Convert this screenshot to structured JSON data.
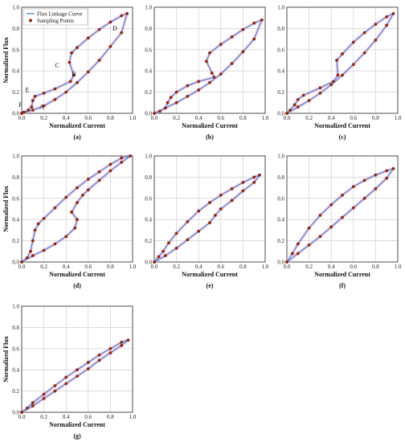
{
  "legend": {
    "curve_label": "Flux Linkage Curve",
    "points_label": "Sampling Points"
  },
  "colors": {
    "curve": "#2e7fd0",
    "points": "#8b2a18",
    "grid": "#c8c8c8",
    "halo": "#ff9ec4"
  },
  "chart_data": [
    {
      "panel": "(a)",
      "type": "line",
      "xlabel": "Normalized Current",
      "ylabel": "Normalized Flux",
      "xlim": [
        0,
        1
      ],
      "ylim": [
        0,
        1
      ],
      "xticks": [
        "0.0",
        "0.2",
        "0.4",
        "0.6",
        "0.8",
        "1.0"
      ],
      "yticks": [
        "0.0",
        "0.2",
        "0.4",
        "0.6",
        "0.8",
        "1.0"
      ],
      "grid": true,
      "legend": "top-left",
      "annotations": [
        {
          "text": "A",
          "x": 0.18,
          "y": 0.04
        },
        {
          "text": "B",
          "x": 0.47,
          "y": 0.35
        },
        {
          "text": "C",
          "x": 0.32,
          "y": 0.43
        },
        {
          "text": "D",
          "x": 0.84,
          "y": 0.78
        },
        {
          "text": "E",
          "x": 0.05,
          "y": 0.2
        },
        {
          "text": "F",
          "x": -0.01,
          "y": 0.06
        }
      ],
      "series": [
        {
          "points": [
            [
              0,
              0
            ],
            [
              0.1,
              0.03
            ],
            [
              0.2,
              0.07
            ],
            [
              0.3,
              0.13
            ],
            [
              0.4,
              0.2
            ],
            [
              0.5,
              0.29
            ],
            [
              0.6,
              0.39
            ],
            [
              0.7,
              0.5
            ],
            [
              0.8,
              0.63
            ],
            [
              0.9,
              0.76
            ],
            [
              0.95,
              0.94
            ],
            [
              0.9,
              0.92
            ],
            [
              0.8,
              0.86
            ],
            [
              0.7,
              0.79
            ],
            [
              0.6,
              0.71
            ],
            [
              0.5,
              0.62
            ],
            [
              0.45,
              0.57
            ],
            [
              0.43,
              0.48
            ],
            [
              0.47,
              0.36
            ],
            [
              0.44,
              0.3
            ],
            [
              0.3,
              0.23
            ],
            [
              0.2,
              0.19
            ],
            [
              0.12,
              0.16
            ],
            [
              0.1,
              0.12
            ],
            [
              0.09,
              0.06
            ],
            [
              0.06,
              0.03
            ],
            [
              0.02,
              0.01
            ],
            [
              0,
              0
            ]
          ]
        }
      ]
    },
    {
      "panel": "(b)",
      "type": "line",
      "xlabel": "Normalized Current",
      "ylabel": "",
      "xlim": [
        0,
        1
      ],
      "ylim": [
        0,
        1
      ],
      "xticks": [
        "0.0",
        "0.2",
        "0.4",
        "0.6",
        "0.8",
        "1.0"
      ],
      "yticks": [
        "0.0",
        "0.2",
        "0.4",
        "0.6",
        "0.8",
        "1.0"
      ],
      "grid": true,
      "series": [
        {
          "points": [
            [
              0,
              0
            ],
            [
              0.1,
              0.05
            ],
            [
              0.2,
              0.1
            ],
            [
              0.3,
              0.16
            ],
            [
              0.4,
              0.22
            ],
            [
              0.5,
              0.29
            ],
            [
              0.6,
              0.37
            ],
            [
              0.7,
              0.47
            ],
            [
              0.8,
              0.58
            ],
            [
              0.9,
              0.7
            ],
            [
              0.97,
              0.88
            ],
            [
              0.9,
              0.85
            ],
            [
              0.8,
              0.79
            ],
            [
              0.7,
              0.72
            ],
            [
              0.6,
              0.65
            ],
            [
              0.5,
              0.57
            ],
            [
              0.47,
              0.49
            ],
            [
              0.52,
              0.38
            ],
            [
              0.54,
              0.34
            ],
            [
              0.4,
              0.3
            ],
            [
              0.3,
              0.26
            ],
            [
              0.2,
              0.2
            ],
            [
              0.15,
              0.15
            ],
            [
              0.12,
              0.1
            ],
            [
              0.1,
              0.05
            ],
            [
              0.05,
              0.02
            ],
            [
              0,
              0
            ]
          ]
        }
      ]
    },
    {
      "panel": "(c)",
      "type": "line",
      "xlabel": "Normalized Current",
      "ylabel": "",
      "xlim": [
        0,
        1
      ],
      "ylim": [
        0,
        1
      ],
      "xticks": [
        "0.0",
        "0.2",
        "0.4",
        "0.6",
        "0.8",
        "1.0"
      ],
      "yticks": [
        "0.0",
        "0.2",
        "0.4",
        "0.6",
        "0.8",
        "1.0"
      ],
      "grid": true,
      "series": [
        {
          "points": [
            [
              0,
              0
            ],
            [
              0.1,
              0.06
            ],
            [
              0.2,
              0.12
            ],
            [
              0.3,
              0.19
            ],
            [
              0.4,
              0.27
            ],
            [
              0.5,
              0.36
            ],
            [
              0.6,
              0.46
            ],
            [
              0.7,
              0.57
            ],
            [
              0.8,
              0.69
            ],
            [
              0.9,
              0.83
            ],
            [
              0.96,
              0.94
            ],
            [
              0.9,
              0.91
            ],
            [
              0.8,
              0.84
            ],
            [
              0.7,
              0.76
            ],
            [
              0.6,
              0.67
            ],
            [
              0.5,
              0.56
            ],
            [
              0.45,
              0.5
            ],
            [
              0.46,
              0.36
            ],
            [
              0.42,
              0.3
            ],
            [
              0.3,
              0.24
            ],
            [
              0.15,
              0.17
            ],
            [
              0.1,
              0.13
            ],
            [
              0.07,
              0.08
            ],
            [
              0.03,
              0.03
            ],
            [
              0,
              0
            ]
          ]
        }
      ]
    },
    {
      "panel": "(d)",
      "type": "line",
      "xlabel": "Normalized Current",
      "ylabel": "Normalized Flux",
      "xlim": [
        0,
        1
      ],
      "ylim": [
        0,
        1
      ],
      "xticks": [
        "0.0",
        "0.2",
        "0.4",
        "0.6",
        "0.8",
        "1.0"
      ],
      "yticks": [
        "0.0",
        "0.2",
        "0.4",
        "0.6",
        "0.8",
        "1.0"
      ],
      "grid": true,
      "series": [
        {
          "points": [
            [
              0,
              0
            ],
            [
              0.1,
              0.06
            ],
            [
              0.2,
              0.11
            ],
            [
              0.3,
              0.17
            ],
            [
              0.4,
              0.24
            ],
            [
              0.48,
              0.32
            ],
            [
              0.5,
              0.4
            ],
            [
              0.45,
              0.47
            ],
            [
              0.5,
              0.56
            ],
            [
              0.55,
              0.63
            ],
            [
              0.6,
              0.68
            ],
            [
              0.7,
              0.77
            ],
            [
              0.8,
              0.86
            ],
            [
              0.9,
              0.94
            ],
            [
              0.98,
              1.0
            ],
            [
              0.9,
              0.98
            ],
            [
              0.8,
              0.92
            ],
            [
              0.7,
              0.85
            ],
            [
              0.6,
              0.78
            ],
            [
              0.5,
              0.7
            ],
            [
              0.4,
              0.61
            ],
            [
              0.3,
              0.51
            ],
            [
              0.2,
              0.41
            ],
            [
              0.15,
              0.36
            ],
            [
              0.12,
              0.3
            ],
            [
              0.1,
              0.2
            ],
            [
              0.08,
              0.1
            ],
            [
              0.05,
              0.04
            ],
            [
              0,
              0
            ]
          ]
        }
      ]
    },
    {
      "panel": "(e)",
      "type": "line",
      "xlabel": "Normalized Current",
      "ylabel": "",
      "xlim": [
        0,
        1
      ],
      "ylim": [
        0,
        1
      ],
      "xticks": [
        "0.0",
        "0.2",
        "0.4",
        "0.6",
        "0.8",
        "1.0"
      ],
      "yticks": [
        "0.0",
        "0.2",
        "0.4",
        "0.6",
        "0.8",
        "1.0"
      ],
      "grid": true,
      "series": [
        {
          "points": [
            [
              0,
              0
            ],
            [
              0.1,
              0.06
            ],
            [
              0.2,
              0.13
            ],
            [
              0.3,
              0.21
            ],
            [
              0.4,
              0.29
            ],
            [
              0.5,
              0.37
            ],
            [
              0.55,
              0.44
            ],
            [
              0.6,
              0.5
            ],
            [
              0.7,
              0.58
            ],
            [
              0.8,
              0.67
            ],
            [
              0.9,
              0.75
            ],
            [
              0.95,
              0.82
            ],
            [
              0.9,
              0.8
            ],
            [
              0.8,
              0.75
            ],
            [
              0.7,
              0.69
            ],
            [
              0.6,
              0.63
            ],
            [
              0.5,
              0.56
            ],
            [
              0.4,
              0.48
            ],
            [
              0.3,
              0.38
            ],
            [
              0.2,
              0.27
            ],
            [
              0.13,
              0.18
            ],
            [
              0.08,
              0.1
            ],
            [
              0.04,
              0.05
            ],
            [
              0,
              0
            ]
          ]
        }
      ]
    },
    {
      "panel": "(f)",
      "type": "line",
      "xlabel": "Normalized Current",
      "ylabel": "",
      "xlim": [
        0,
        1
      ],
      "ylim": [
        0,
        1
      ],
      "xticks": [
        "0.0",
        "0.2",
        "0.4",
        "0.6",
        "0.8",
        "1.0"
      ],
      "yticks": [
        "0.0",
        "0.2",
        "0.4",
        "0.6",
        "0.8",
        "1.0"
      ],
      "grid": true,
      "series": [
        {
          "points": [
            [
              0,
              0
            ],
            [
              0.1,
              0.08
            ],
            [
              0.2,
              0.16
            ],
            [
              0.3,
              0.24
            ],
            [
              0.4,
              0.33
            ],
            [
              0.5,
              0.42
            ],
            [
              0.6,
              0.51
            ],
            [
              0.7,
              0.6
            ],
            [
              0.8,
              0.69
            ],
            [
              0.9,
              0.79
            ],
            [
              0.96,
              0.88
            ],
            [
              0.9,
              0.86
            ],
            [
              0.8,
              0.82
            ],
            [
              0.7,
              0.77
            ],
            [
              0.6,
              0.71
            ],
            [
              0.5,
              0.63
            ],
            [
              0.4,
              0.54
            ],
            [
              0.3,
              0.44
            ],
            [
              0.2,
              0.32
            ],
            [
              0.1,
              0.17
            ],
            [
              0.05,
              0.08
            ],
            [
              0,
              0
            ]
          ]
        }
      ]
    },
    {
      "panel": "(g)",
      "type": "line",
      "xlabel": "Normalized Current",
      "ylabel": "Normalized Flux",
      "xlim": [
        0,
        1
      ],
      "ylim": [
        0,
        1
      ],
      "xticks": [
        "0.0",
        "0.2",
        "0.4",
        "0.6",
        "0.8",
        "1.0"
      ],
      "yticks": [
        "0.0",
        "0.2",
        "0.4",
        "0.6",
        "0.8",
        "1.0"
      ],
      "grid": true,
      "series": [
        {
          "points": [
            [
              0,
              0
            ],
            [
              0.1,
              0.06
            ],
            [
              0.2,
              0.13
            ],
            [
              0.3,
              0.2
            ],
            [
              0.4,
              0.27
            ],
            [
              0.5,
              0.34
            ],
            [
              0.6,
              0.41
            ],
            [
              0.7,
              0.49
            ],
            [
              0.8,
              0.56
            ],
            [
              0.9,
              0.63
            ],
            [
              0.96,
              0.68
            ],
            [
              0.9,
              0.66
            ],
            [
              0.8,
              0.6
            ],
            [
              0.7,
              0.54
            ],
            [
              0.6,
              0.47
            ],
            [
              0.5,
              0.4
            ],
            [
              0.4,
              0.33
            ],
            [
              0.3,
              0.25
            ],
            [
              0.2,
              0.17
            ],
            [
              0.1,
              0.09
            ],
            [
              0.05,
              0.04
            ],
            [
              0,
              0
            ]
          ]
        }
      ]
    }
  ]
}
